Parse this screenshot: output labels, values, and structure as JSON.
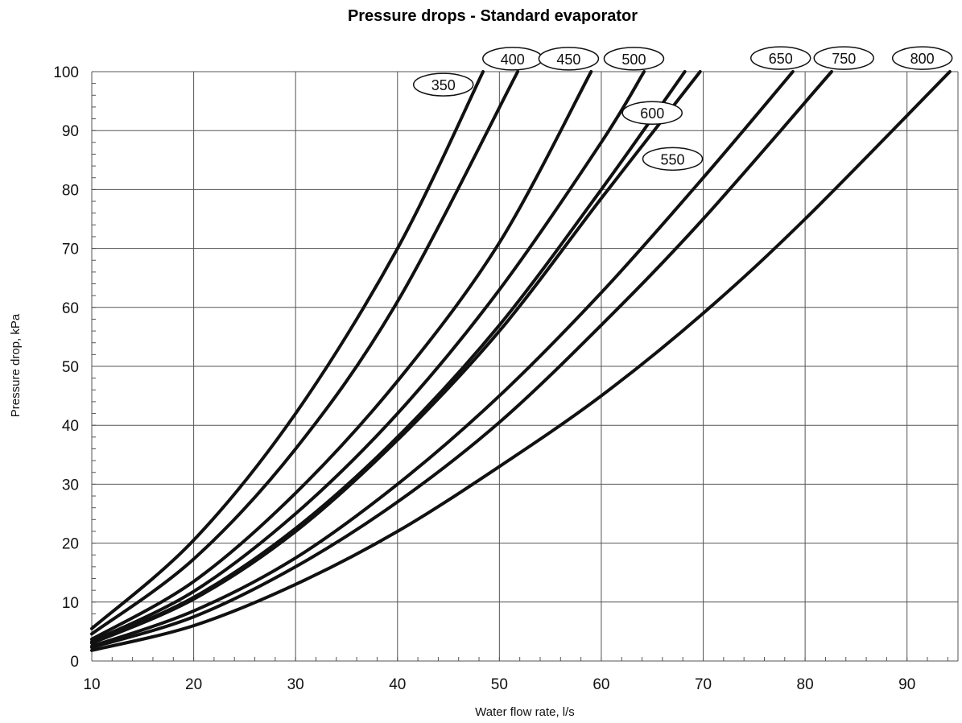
{
  "chart_data": {
    "type": "line",
    "title": "Pressure drops - Standard evaporator",
    "xlabel": "Water flow rate, l/s",
    "ylabel": "Pressure drop, kPa",
    "xlim": [
      10,
      95
    ],
    "ylim": [
      0,
      100
    ],
    "x_ticks": [
      "10",
      "20",
      "30",
      "40",
      "50",
      "60",
      "70",
      "80",
      "90"
    ],
    "y_ticks": [
      "0",
      "10",
      "20",
      "30",
      "40",
      "50",
      "60",
      "70",
      "80",
      "90",
      "100"
    ],
    "grid": true,
    "series": [
      {
        "name": "350",
        "x": [
          10,
          20,
          30,
          40,
          48.4
        ],
        "y": [
          5.5,
          20.5,
          42,
          70,
          100
        ]
      },
      {
        "name": "400",
        "x": [
          10,
          20,
          30,
          40,
          51.8
        ],
        "y": [
          4.6,
          17.3,
          36,
          61,
          100
        ]
      },
      {
        "name": "450",
        "x": [
          10,
          20,
          30,
          40,
          50,
          59
        ],
        "y": [
          3.7,
          13.5,
          28.5,
          47.5,
          71,
          100
        ]
      },
      {
        "name": "500",
        "x": [
          10,
          20,
          30,
          40,
          50,
          60,
          64.2
        ],
        "y": [
          3.3,
          11.8,
          25,
          42,
          63,
          88,
          100
        ]
      },
      {
        "name": "600",
        "x": [
          10,
          20,
          30,
          40,
          50,
          60,
          68.2
        ],
        "y": [
          3.1,
          10.8,
          22.5,
          38,
          57,
          80,
          100
        ]
      },
      {
        "name": "550",
        "x": [
          10,
          20,
          30,
          40,
          50,
          60,
          69.7
        ],
        "y": [
          3.0,
          10.5,
          22,
          37.5,
          56,
          78.5,
          100
        ]
      },
      {
        "name": "650",
        "x": [
          10,
          20,
          30,
          40,
          50,
          60,
          70,
          78.8
        ],
        "y": [
          2.5,
          8.5,
          17.5,
          30,
          45,
          62.5,
          82,
          100
        ]
      },
      {
        "name": "750",
        "x": [
          10,
          20,
          30,
          40,
          50,
          60,
          70,
          82.6
        ],
        "y": [
          2.3,
          7.5,
          16,
          27,
          40.5,
          57,
          75,
          100
        ]
      },
      {
        "name": "800",
        "x": [
          10,
          20,
          30,
          40,
          50,
          60,
          70,
          80,
          94.2
        ],
        "y": [
          1.8,
          6,
          13,
          22,
          33,
          45,
          59,
          75,
          100
        ]
      }
    ],
    "series_labels": [
      {
        "text": "350",
        "x": 44.5,
        "y": 97.8
      },
      {
        "text": "400",
        "x": 51.3,
        "y": 102.2
      },
      {
        "text": "450",
        "x": 56.8,
        "y": 102.2
      },
      {
        "text": "500",
        "x": 63.2,
        "y": 102.2
      },
      {
        "text": "600",
        "x": 65.0,
        "y": 93.0
      },
      {
        "text": "550",
        "x": 67.0,
        "y": 85.2
      },
      {
        "text": "650",
        "x": 77.6,
        "y": 102.3
      },
      {
        "text": "750",
        "x": 83.8,
        "y": 102.3
      },
      {
        "text": "800",
        "x": 91.5,
        "y": 102.3
      }
    ]
  }
}
